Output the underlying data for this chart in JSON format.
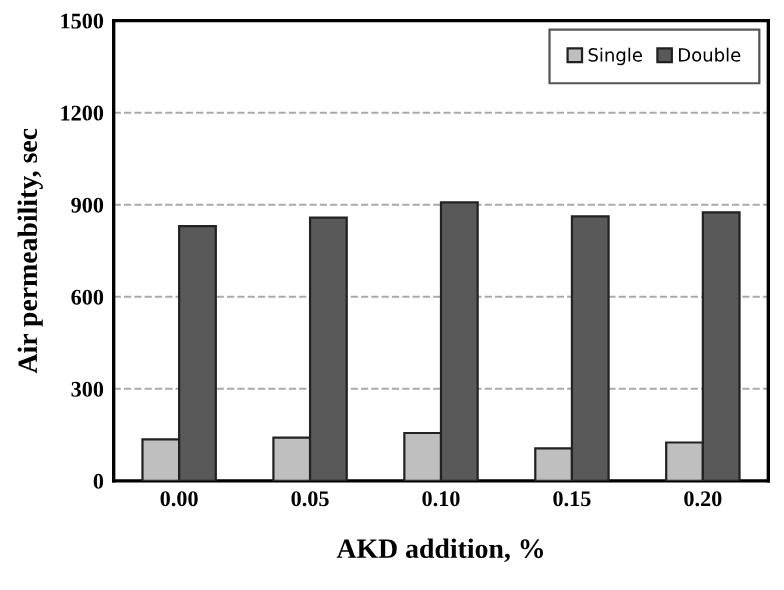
{
  "chart_data": {
    "type": "bar",
    "xlabel": "AKD addition, %",
    "ylabel": "Air permeability, sec",
    "categories": [
      "0.00",
      "0.05",
      "0.10",
      "0.15",
      "0.20"
    ],
    "series": [
      {
        "name": "Single",
        "color": "#bfbfbf",
        "values": [
          135,
          141,
          156,
          106,
          125
        ]
      },
      {
        "name": "Double",
        "color": "#595959",
        "values": [
          830,
          858,
          908,
          862,
          875
        ]
      }
    ],
    "ylim": [
      0,
      1500
    ],
    "yticks": [
      0,
      300,
      600,
      900,
      1200,
      1500
    ],
    "grid": "y",
    "legend": "top right"
  }
}
